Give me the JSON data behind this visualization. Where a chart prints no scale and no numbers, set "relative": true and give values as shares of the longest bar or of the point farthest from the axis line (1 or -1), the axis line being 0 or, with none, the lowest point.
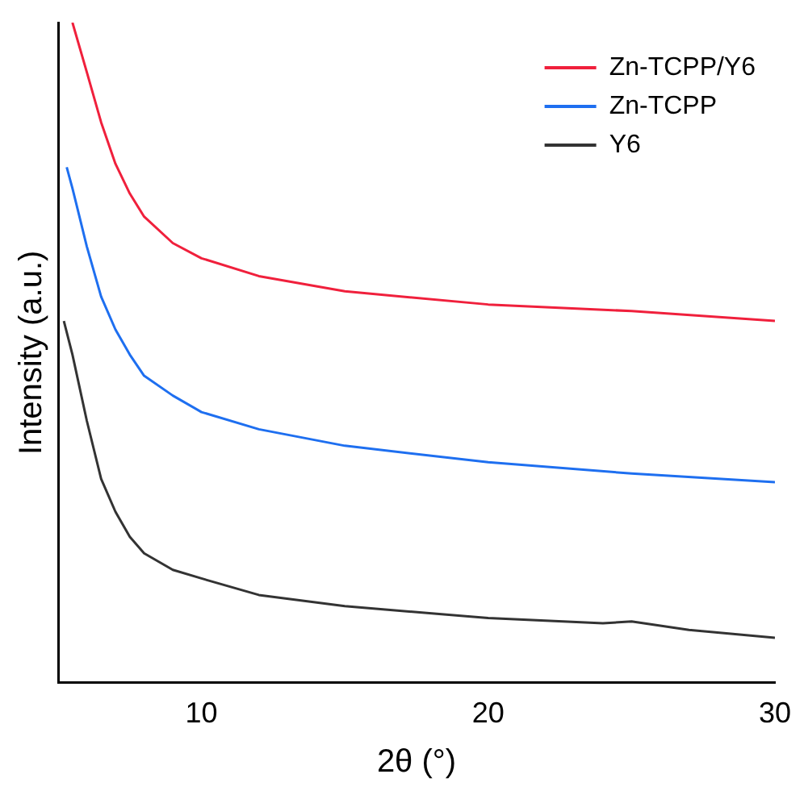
{
  "chart_data": {
    "type": "line",
    "xlabel": "2θ (°)",
    "ylabel": "Intensity (a.u.)",
    "relative": true,
    "xlim": [
      5,
      30
    ],
    "xticks": [
      10,
      20,
      30
    ],
    "legend": "top right",
    "grid": false,
    "marker": "none",
    "line_style": "solid",
    "series": [
      {
        "name": "Zn-TCPP/Y6",
        "color": "#f0203c",
        "x": [
          5.5,
          6,
          6.5,
          7,
          7.5,
          8,
          9,
          10,
          12,
          15,
          20,
          25,
          30
        ],
        "values": [
          1.0,
          0.925,
          0.849,
          0.786,
          0.741,
          0.706,
          0.666,
          0.643,
          0.616,
          0.593,
          0.573,
          0.563,
          0.548
        ]
      },
      {
        "name": "Zn-TCPP",
        "color": "#1e6ff0",
        "x": [
          5.3,
          5.5,
          6,
          6.5,
          7,
          7.5,
          8,
          9,
          10,
          12,
          15,
          20,
          25,
          30
        ],
        "values": [
          0.781,
          0.749,
          0.661,
          0.585,
          0.535,
          0.497,
          0.465,
          0.435,
          0.41,
          0.384,
          0.359,
          0.334,
          0.317,
          0.304
        ]
      },
      {
        "name": "Y6",
        "color": "#333333",
        "x": [
          5.2,
          5.5,
          6,
          6.5,
          7,
          7.5,
          8,
          9,
          10,
          12,
          15,
          20,
          24,
          25,
          27,
          30
        ],
        "values": [
          0.548,
          0.497,
          0.397,
          0.309,
          0.259,
          0.221,
          0.196,
          0.171,
          0.158,
          0.133,
          0.116,
          0.098,
          0.09,
          0.093,
          0.08,
          0.068
        ]
      }
    ]
  }
}
